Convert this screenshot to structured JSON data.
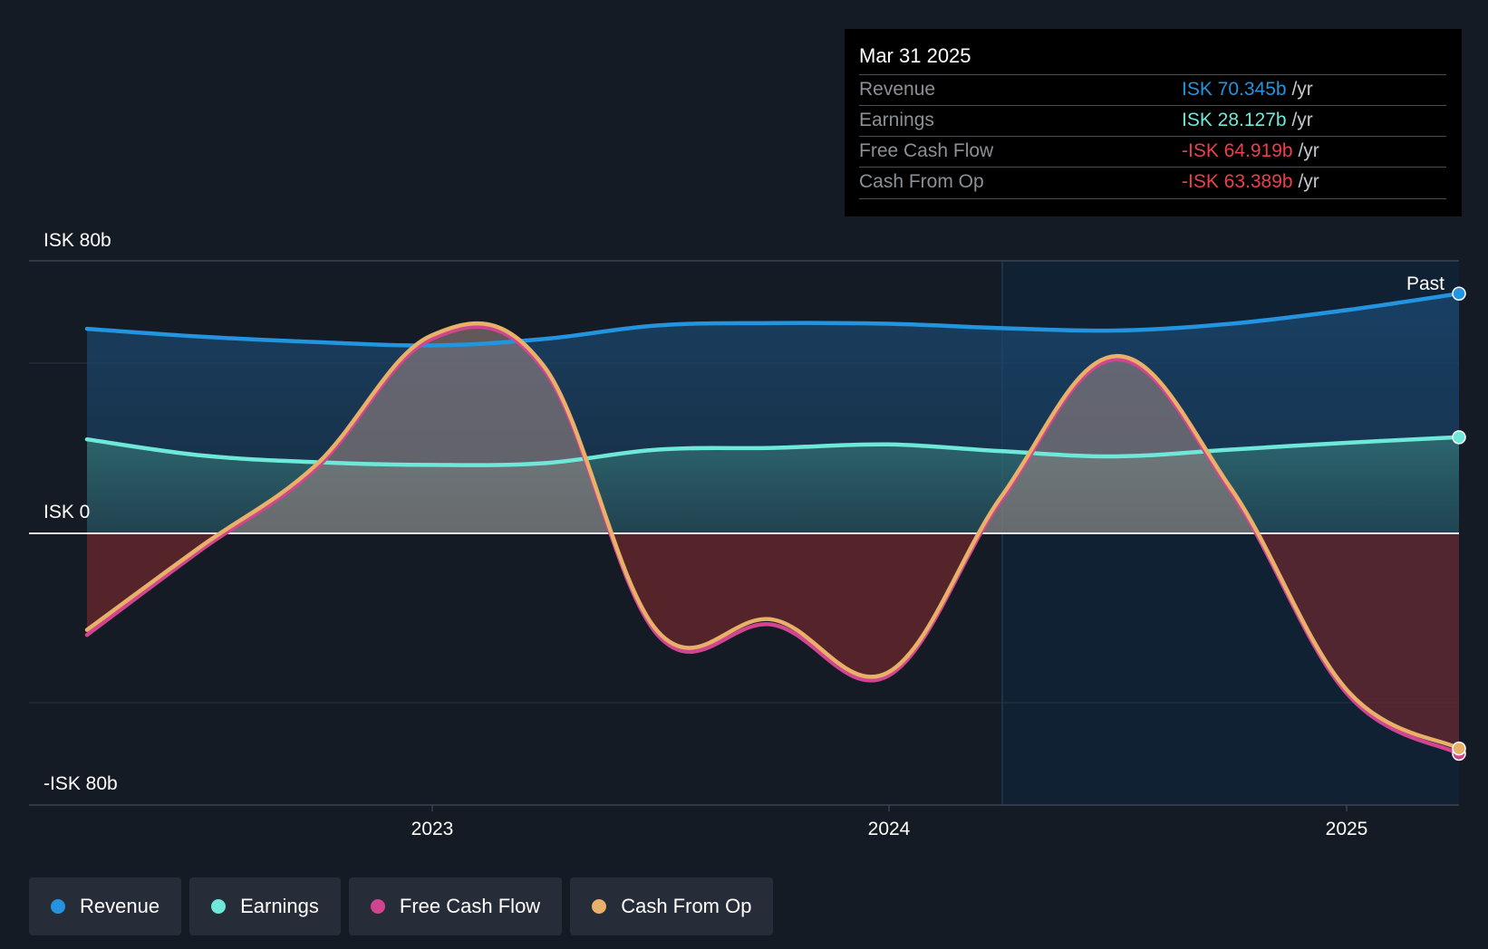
{
  "chart_data": {
    "type": "area",
    "y_axis": {
      "labels": [
        "ISK 80b",
        "ISK 0",
        "-ISK 80b"
      ],
      "ylim": [
        -80,
        80
      ],
      "unit": "ISK b"
    },
    "x_axis": {
      "ticks": [
        "2023",
        "2024",
        "2025"
      ],
      "xlim": [
        "2022-03-31",
        "2025-03-31"
      ]
    },
    "past_label": "Past",
    "series": [
      {
        "name": "Revenue",
        "color": "#2394df",
        "points": [
          [
            "2022-03-31",
            60
          ],
          [
            "2022-06-30",
            57.7
          ],
          [
            "2022-09-30",
            56.1
          ],
          [
            "2022-12-31",
            55.1
          ],
          [
            "2023-03-31",
            57
          ],
          [
            "2023-06-30",
            61
          ],
          [
            "2023-09-30",
            61.7
          ],
          [
            "2023-12-31",
            61.5
          ],
          [
            "2024-03-31",
            60.2
          ],
          [
            "2024-06-30",
            59.5
          ],
          [
            "2024-09-30",
            61.5
          ],
          [
            "2024-12-31",
            65.5
          ],
          [
            "2025-03-31",
            70.345
          ]
        ]
      },
      {
        "name": "Earnings",
        "color": "#6ee8d8",
        "points": [
          [
            "2022-03-31",
            27.5
          ],
          [
            "2022-06-30",
            22.8
          ],
          [
            "2022-09-30",
            20.8
          ],
          [
            "2022-12-31",
            20
          ],
          [
            "2023-03-31",
            20.5
          ],
          [
            "2023-06-30",
            24.5
          ],
          [
            "2023-09-30",
            25
          ],
          [
            "2023-12-31",
            26
          ],
          [
            "2024-03-31",
            24
          ],
          [
            "2024-06-30",
            22.5
          ],
          [
            "2024-09-30",
            24.5
          ],
          [
            "2024-12-31",
            26.5
          ],
          [
            "2025-03-31",
            28.127
          ]
        ]
      },
      {
        "name": "Free Cash Flow",
        "color": "#d14590",
        "points": [
          [
            "2022-03-31",
            -30
          ],
          [
            "2022-06-30",
            -5
          ],
          [
            "2022-09-30",
            19
          ],
          [
            "2022-12-31",
            57
          ],
          [
            "2023-03-31",
            48
          ],
          [
            "2023-06-30",
            -30
          ],
          [
            "2023-09-30",
            -27
          ],
          [
            "2023-12-31",
            -42
          ],
          [
            "2024-03-31",
            10
          ],
          [
            "2024-06-30",
            51
          ],
          [
            "2024-09-30",
            12
          ],
          [
            "2024-12-31",
            -47
          ],
          [
            "2025-03-31",
            -64.919
          ]
        ]
      },
      {
        "name": "Cash From Op",
        "color": "#e8b068",
        "points": [
          [
            "2022-03-31",
            -28.5
          ],
          [
            "2022-06-30",
            -4
          ],
          [
            "2022-09-30",
            20
          ],
          [
            "2022-12-31",
            58
          ],
          [
            "2023-03-31",
            49
          ],
          [
            "2023-06-30",
            -29
          ],
          [
            "2023-09-30",
            -25.5
          ],
          [
            "2023-12-31",
            -41
          ],
          [
            "2024-03-31",
            11
          ],
          [
            "2024-06-30",
            52
          ],
          [
            "2024-09-30",
            13
          ],
          [
            "2024-12-31",
            -46
          ],
          [
            "2025-03-31",
            -63.389
          ]
        ]
      }
    ],
    "legend_position": "bottom-left"
  },
  "tooltip": {
    "date": "Mar 31 2025",
    "rows": [
      {
        "label": "Revenue",
        "value": "ISK 70.345b",
        "unit": "/yr",
        "color": "#2394df"
      },
      {
        "label": "Earnings",
        "value": "ISK 28.127b",
        "unit": "/yr",
        "color": "#6ee8d8"
      },
      {
        "label": "Free Cash Flow",
        "value": "-ISK 64.919b",
        "unit": "/yr",
        "color": "#e8414b"
      },
      {
        "label": "Cash From Op",
        "value": "-ISK 63.389b",
        "unit": "/yr",
        "color": "#e8414b"
      }
    ]
  },
  "legend": [
    {
      "label": "Revenue",
      "color": "#2394df"
    },
    {
      "label": "Earnings",
      "color": "#6ee8d8"
    },
    {
      "label": "Free Cash Flow",
      "color": "#d14590"
    },
    {
      "label": "Cash From Op",
      "color": "#e8b068"
    }
  ]
}
